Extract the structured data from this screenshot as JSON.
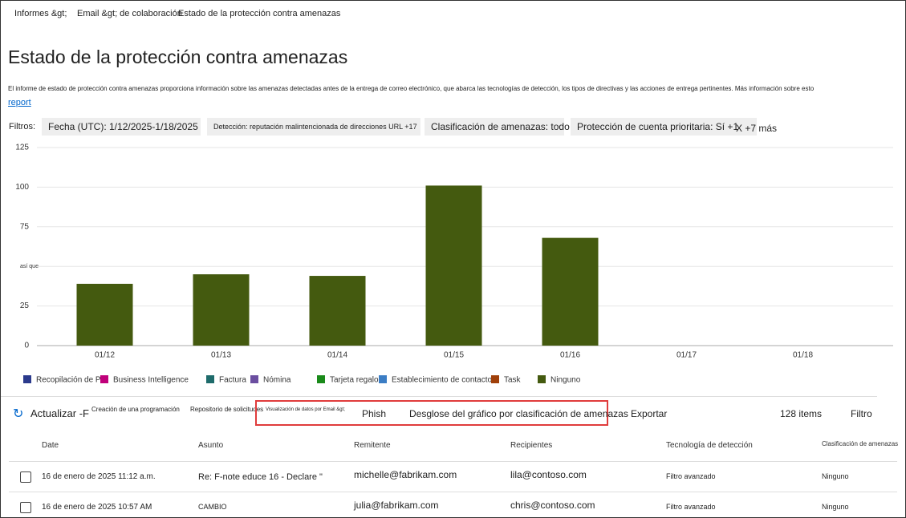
{
  "breadcrumb": [
    "Informes &gt;",
    "Email &gt; de colaboración",
    "Estado de la protección contra amenazas"
  ],
  "title": "Estado de la protección contra amenazas",
  "description": "El informe de estado de protección contra amenazas proporciona información sobre las amenazas detectadas antes de la entrega de correo electrónico, que abarca las tecnologías de detección, los tipos de directivas y las acciones de entrega pertinentes. Más información sobre esto",
  "description_link": "report",
  "filters": {
    "label": "Filtros:",
    "items": [
      "Fecha (UTC): 1/12/2025-1/18/2025",
      "Detección: reputación malintencionada de direcciones URL +17",
      "Clasificación de amenazas: todo",
      "Protección de cuenta prioritaria: Sí +1"
    ],
    "more": "X +7 más"
  },
  "chart_data": {
    "type": "bar",
    "stacked": true,
    "categories": [
      "01/12",
      "01/13",
      "01/14",
      "01/15",
      "01/16",
      "01/17",
      "01/18"
    ],
    "series": [
      {
        "name": "Recopilación de PII",
        "color": "#2b3a8c",
        "values": [
          0,
          0,
          0,
          0,
          0,
          0,
          0
        ]
      },
      {
        "name": "Business Intelligence",
        "color": "#c0007a",
        "values": [
          0,
          0,
          0,
          0,
          0,
          0,
          0
        ]
      },
      {
        "name": "Factura",
        "color": "#1e6b6b",
        "values": [
          0,
          0,
          0,
          0,
          0,
          0,
          0
        ]
      },
      {
        "name": "Nómina",
        "color": "#6b4ea0",
        "values": [
          0,
          0,
          0,
          0,
          0,
          0,
          0
        ]
      },
      {
        "name": "Tarjeta regalo",
        "color": "#1a8a1a",
        "values": [
          0,
          0,
          0,
          0,
          0,
          0,
          0
        ]
      },
      {
        "name": "Establecimiento de contacto",
        "color": "#3b7dc4",
        "values": [
          0,
          0,
          0,
          0,
          0,
          0,
          0
        ]
      },
      {
        "name": "Task",
        "color": "#a0400a",
        "values": [
          0,
          0,
          0,
          0,
          0,
          0,
          0
        ]
      },
      {
        "name": "Ninguno",
        "color": "#445a0f",
        "values": [
          39,
          45,
          44,
          101,
          68,
          0,
          0
        ]
      }
    ],
    "ylim": [
      0,
      125
    ],
    "yticks": [
      0,
      25,
      {
        "value": 50,
        "label": "así que"
      },
      75,
      100,
      125
    ],
    "grid": true
  },
  "toolbar": [
    "Actualizar -F",
    "Creación de una programación",
    "Repositorio de solicitudes",
    "Visualización de datos por Email &gt;",
    "Phish",
    "Desglose del gráfico por clasificación de amenazas",
    "Exportar",
    "128 items",
    "Filtro"
  ],
  "table": {
    "headers": [
      "Date",
      "Asunto",
      "Remitente",
      "Recipientes",
      "Tecnología de detección",
      "Clasificación de amenazas"
    ],
    "rows": [
      [
        "16 de enero de 2025 11:12 a.m.",
        "Re: F-note educe 16 - Declare \"",
        "michelle@fabrikam.com",
        "lila@contoso.com",
        "Filtro avanzado",
        "Ninguno"
      ],
      [
        "16 de enero de 2025 10:57 AM",
        "CAMBIO",
        "julia@fabrikam.com",
        "chris@contoso.com",
        "Filtro avanzado",
        "Ninguno"
      ]
    ]
  }
}
